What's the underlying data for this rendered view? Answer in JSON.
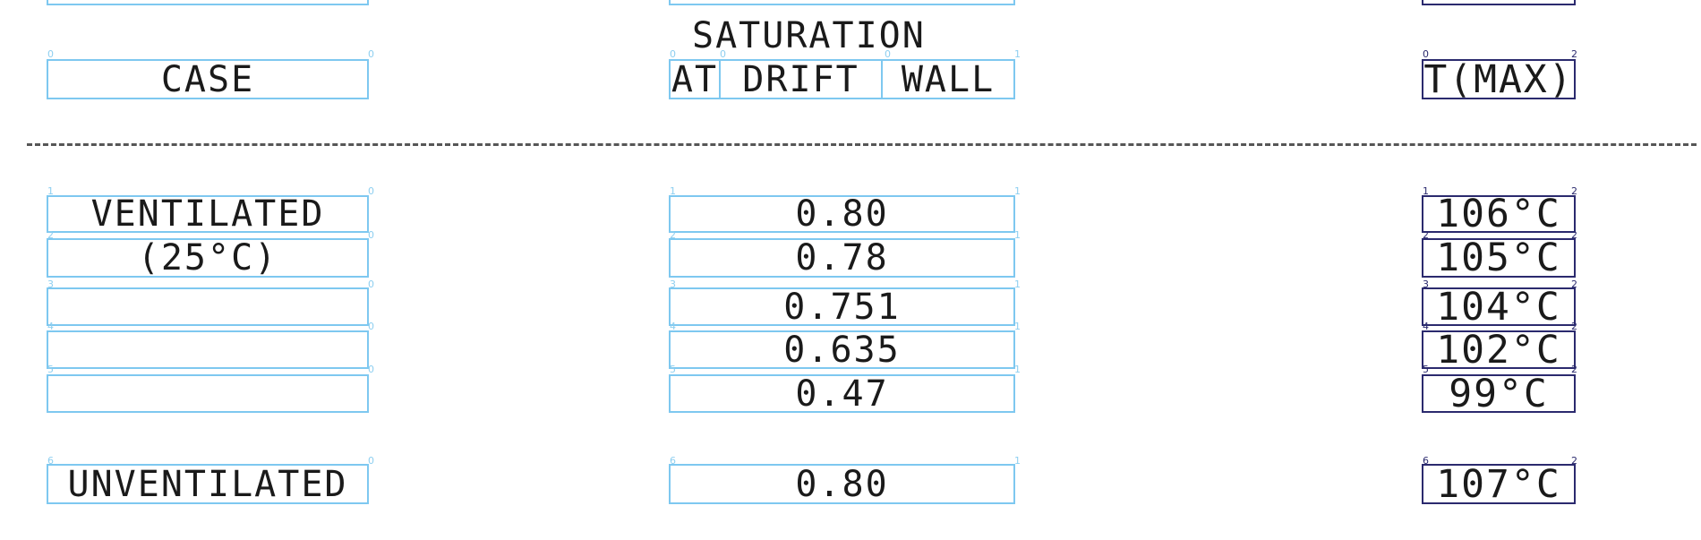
{
  "header": {
    "saturation_title": "SATURATION",
    "case_label": "CASE",
    "sub_at": "AT",
    "sub_drift": "DRIFT",
    "sub_wall": "WALL",
    "tmax_label": "T(MAX)"
  },
  "rows": [
    {
      "case": "VENTILATED",
      "saturation": "0.80",
      "tmax": "106°C"
    },
    {
      "case": "(25°C)",
      "saturation": "0.78",
      "tmax": "105°C"
    },
    {
      "case": "",
      "saturation": "0.751",
      "tmax": "104°C"
    },
    {
      "case": "",
      "saturation": "0.635",
      "tmax": "102°C"
    },
    {
      "case": "",
      "saturation": "0.47",
      "tmax": "99°C"
    },
    {
      "case": "UNVENTILATED",
      "saturation": "0.80",
      "tmax": "107°C"
    }
  ],
  "markers": {
    "zero": "0",
    "one": "1",
    "two": "2",
    "three": "3",
    "four": "4",
    "five": "5",
    "six": "6"
  }
}
